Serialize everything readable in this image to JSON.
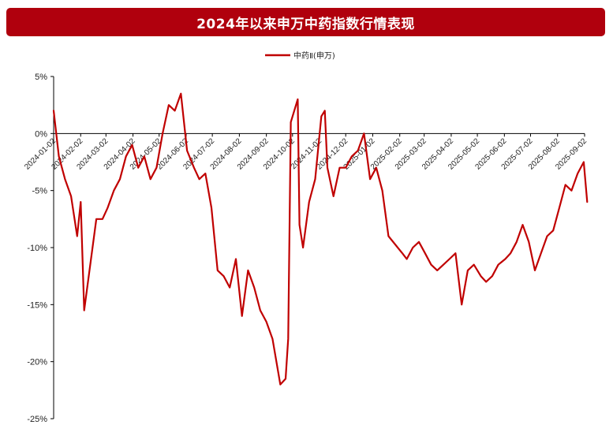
{
  "chart_data": {
    "type": "line",
    "title": "2024年以来申万中药指数行情表现",
    "xlabel": "",
    "ylabel": "",
    "ylim": [
      -25,
      5
    ],
    "yticks": [
      "5%",
      "0%",
      "-5%",
      "-10%",
      "-15%",
      "-20%",
      "-25%"
    ],
    "ytick_values": [
      5,
      0,
      -5,
      -10,
      -15,
      -20,
      -25
    ],
    "xticks": [
      "2024-01-02",
      "2024-02-02",
      "2024-03-02",
      "2024-04-02",
      "2024-05-02",
      "2024-06-02",
      "2024-07-02",
      "2024-08-02",
      "2024-09-02",
      "2024-10-02",
      "2024-11-02",
      "2024-12-02",
      "2025-01-02",
      "2025-02-02",
      "2025-03-02",
      "2025-04-02",
      "2025-05-02",
      "2025-06-02",
      "2025-07-02",
      "2025-08-02",
      "2025-09-02"
    ],
    "legend_position": "top-center",
    "grid": false,
    "series": [
      {
        "name": "中药Ⅱ(申万)",
        "color": "#c00000",
        "x": [
          "2024-01-02",
          "2024-01-08",
          "2024-01-15",
          "2024-01-22",
          "2024-01-29",
          "2024-02-02",
          "2024-02-06",
          "2024-02-20",
          "2024-02-27",
          "2024-03-04",
          "2024-03-11",
          "2024-03-18",
          "2024-03-25",
          "2024-04-01",
          "2024-04-08",
          "2024-04-15",
          "2024-04-22",
          "2024-04-29",
          "2024-05-06",
          "2024-05-13",
          "2024-05-20",
          "2024-05-27",
          "2024-06-03",
          "2024-06-11",
          "2024-06-17",
          "2024-06-24",
          "2024-07-01",
          "2024-07-08",
          "2024-07-15",
          "2024-07-22",
          "2024-07-29",
          "2024-08-05",
          "2024-08-12",
          "2024-08-19",
          "2024-08-26",
          "2024-09-02",
          "2024-09-09",
          "2024-09-18",
          "2024-09-24",
          "2024-09-27",
          "2024-09-30",
          "2024-10-08",
          "2024-10-10",
          "2024-10-14",
          "2024-10-21",
          "2024-10-28",
          "2024-11-04",
          "2024-11-08",
          "2024-11-11",
          "2024-11-18",
          "2024-11-25",
          "2024-12-02",
          "2024-12-09",
          "2024-12-16",
          "2024-12-23",
          "2024-12-30",
          "2025-01-06",
          "2025-01-13",
          "2025-01-20",
          "2025-02-05",
          "2025-02-10",
          "2025-02-17",
          "2025-02-24",
          "2025-03-03",
          "2025-03-10",
          "2025-03-17",
          "2025-03-24",
          "2025-03-31",
          "2025-04-07",
          "2025-04-14",
          "2025-04-21",
          "2025-04-28",
          "2025-05-06",
          "2025-05-12",
          "2025-05-19",
          "2025-05-26",
          "2025-06-03",
          "2025-06-09",
          "2025-06-16",
          "2025-06-23",
          "2025-06-30",
          "2025-07-07",
          "2025-07-14",
          "2025-07-21",
          "2025-07-28",
          "2025-08-04",
          "2025-08-11",
          "2025-08-18",
          "2025-08-25",
          "2025-09-01",
          "2025-09-05"
        ],
        "values": [
          2.0,
          -2.0,
          -4.0,
          -5.5,
          -9.0,
          -6.0,
          -15.5,
          -7.5,
          -7.5,
          -6.5,
          -5.0,
          -4.0,
          -2.0,
          -1.0,
          -3.0,
          -2.0,
          -4.0,
          -3.0,
          0.0,
          2.5,
          2.0,
          3.5,
          -1.5,
          -3.0,
          -4.0,
          -3.5,
          -6.5,
          -12.0,
          -12.5,
          -13.5,
          -11.0,
          -16.0,
          -12.0,
          -13.5,
          -15.5,
          -16.5,
          -18.0,
          -22.0,
          -21.5,
          -18.0,
          1.0,
          3.0,
          -8.0,
          -10.0,
          -6.0,
          -4.0,
          1.5,
          2.0,
          -3.0,
          -5.5,
          -3.0,
          -3.0,
          -2.0,
          -1.5,
          0.0,
          -4.0,
          -3.0,
          -5.0,
          -9.0,
          -10.5,
          -11.0,
          -10.0,
          -9.5,
          -10.5,
          -11.5,
          -12.0,
          -11.5,
          -11.0,
          -10.5,
          -15.0,
          -12.0,
          -11.5,
          -12.5,
          -13.0,
          -12.5,
          -11.5,
          -11.0,
          -10.5,
          -9.5,
          -8.0,
          -9.5,
          -12.0,
          -10.5,
          -9.0,
          -8.5,
          -6.5,
          -4.5,
          -5.0,
          -3.5,
          -2.5,
          -6.0
        ]
      }
    ]
  }
}
